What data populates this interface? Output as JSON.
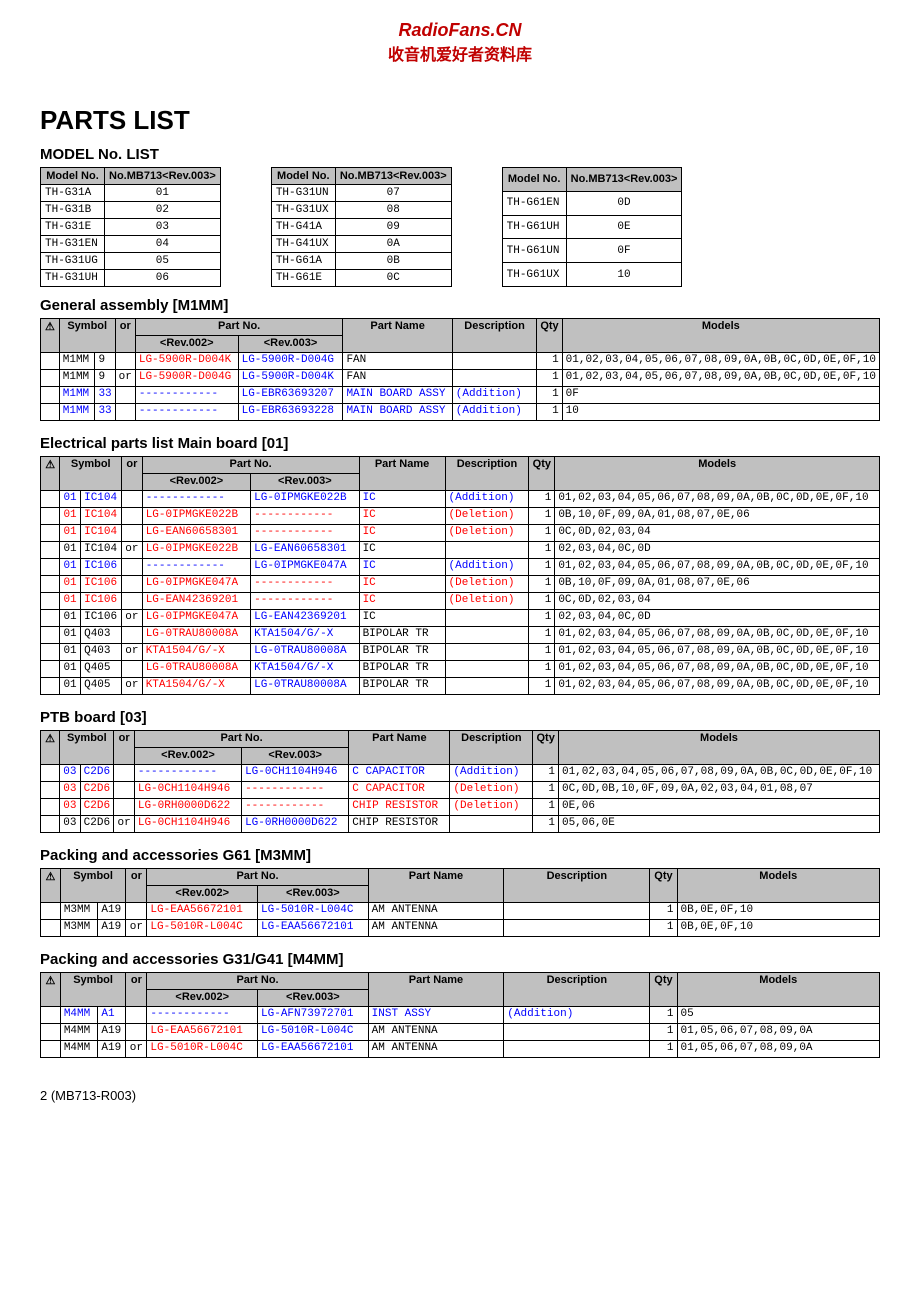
{
  "watermark": {
    "title": "RadioFans.CN",
    "sub": "收音机爱好者资料库"
  },
  "page_title": "PARTS LIST",
  "model_list_heading": "MODEL No. LIST",
  "model_header": {
    "col1": "Model No.",
    "col2": "No.MB713<Rev.003>"
  },
  "model_tables": [
    [
      [
        "TH-G31A",
        "01"
      ],
      [
        "TH-G31B",
        "02"
      ],
      [
        "TH-G31E",
        "03"
      ],
      [
        "TH-G31EN",
        "04"
      ],
      [
        "TH-G31UG",
        "05"
      ],
      [
        "TH-G31UH",
        "06"
      ]
    ],
    [
      [
        "TH-G31UN",
        "07"
      ],
      [
        "TH-G31UX",
        "08"
      ],
      [
        "TH-G41A",
        "09"
      ],
      [
        "TH-G41UX",
        "0A"
      ],
      [
        "TH-G61A",
        "0B"
      ],
      [
        "TH-G61E",
        "0C"
      ]
    ],
    [
      [
        "TH-G61EN",
        "0D"
      ],
      [
        "TH-G61UH",
        "0E"
      ],
      [
        "TH-G61UN",
        "0F"
      ],
      [
        "TH-G61UX",
        "10"
      ]
    ]
  ],
  "sections": [
    {
      "heading": "General assembly [M1MM]",
      "widths": [
        "12",
        "36",
        "14",
        "18",
        "108",
        "108",
        "118",
        "86",
        "24",
        "280"
      ],
      "rows": [
        {
          "d": "",
          "s1": "M1MM",
          "s2": "9",
          "or": "",
          "r2": "LG-5900R-D004K",
          "r2c": "red",
          "r3": "LG-5900R-D004G",
          "r3c": "blue",
          "pn": "FAN",
          "desc": "",
          "qty": "1",
          "models": "01,02,03,04,05,06,07,08,09,0A,0B,0C,0D,0E,0F,10"
        },
        {
          "d": "",
          "s1": "M1MM",
          "s2": "9",
          "or": "or",
          "r2": "LG-5900R-D004G",
          "r2c": "red",
          "r3": "LG-5900R-D004K",
          "r3c": "blue",
          "pn": "FAN",
          "desc": "",
          "qty": "1",
          "models": "01,02,03,04,05,06,07,08,09,0A,0B,0C,0D,0E,0F,10"
        },
        {
          "d": "",
          "s1": "M1MM",
          "s1c": "blue",
          "s2": "33",
          "s2c": "blue",
          "or": "",
          "r2": "------------",
          "r2c": "blue",
          "r3": "LG-EBR63693207",
          "r3c": "blue",
          "pn": "MAIN BOARD ASSY",
          "pnc": "blue",
          "desc": "(Addition)",
          "descc": "blue",
          "qty": "1",
          "models": "0F"
        },
        {
          "d": "",
          "s1": "M1MM",
          "s1c": "blue",
          "s2": "33",
          "s2c": "blue",
          "or": "",
          "r2": "------------",
          "r2c": "blue",
          "r3": "LG-EBR63693228",
          "r3c": "blue",
          "pn": "MAIN BOARD ASSY",
          "pnc": "blue",
          "desc": "(Addition)",
          "descc": "blue",
          "qty": "1",
          "models": "10"
        }
      ]
    },
    {
      "heading": "Electrical parts list Main board [01]",
      "widths": [
        "12",
        "18",
        "40",
        "18",
        "106",
        "106",
        "84",
        "82",
        "22",
        "312"
      ],
      "rows": [
        {
          "d": "",
          "s1": "01",
          "s1c": "blue",
          "s2": "IC104",
          "s2c": "blue",
          "or": "",
          "r2": "------------",
          "r2c": "blue",
          "r3": "LG-0IPMGKE022B",
          "r3c": "blue",
          "pn": "IC",
          "pnc": "blue",
          "desc": "(Addition)",
          "descc": "blue",
          "qty": "1",
          "models": "01,02,03,04,05,06,07,08,09,0A,0B,0C,0D,0E,0F,10"
        },
        {
          "d": "",
          "s1": "01",
          "s1c": "red",
          "s2": "IC104",
          "s2c": "red",
          "or": "",
          "r2": "LG-0IPMGKE022B",
          "r2c": "red",
          "r3": "------------",
          "r3c": "red",
          "pn": "IC",
          "pnc": "red",
          "desc": "(Deletion)",
          "descc": "red",
          "qty": "1",
          "models": "0B,10,0F,09,0A,01,08,07,0E,06"
        },
        {
          "d": "",
          "s1": "01",
          "s1c": "red",
          "s2": "IC104",
          "s2c": "red",
          "or": "",
          "r2": "LG-EAN60658301",
          "r2c": "red",
          "r3": "------------",
          "r3c": "red",
          "pn": "IC",
          "pnc": "red",
          "desc": "(Deletion)",
          "descc": "red",
          "qty": "1",
          "models": "0C,0D,02,03,04"
        },
        {
          "d": "",
          "s1": "01",
          "s2": "IC104",
          "or": "or",
          "r2": "LG-0IPMGKE022B",
          "r2c": "red",
          "r3": "LG-EAN60658301",
          "r3c": "blue",
          "pn": "IC",
          "desc": "",
          "qty": "1",
          "models": "02,03,04,0C,0D"
        },
        {
          "d": "",
          "s1": "01",
          "s1c": "blue",
          "s2": "IC106",
          "s2c": "blue",
          "or": "",
          "r2": "------------",
          "r2c": "blue",
          "r3": "LG-0IPMGKE047A",
          "r3c": "blue",
          "pn": "IC",
          "pnc": "blue",
          "desc": "(Addition)",
          "descc": "blue",
          "qty": "1",
          "models": "01,02,03,04,05,06,07,08,09,0A,0B,0C,0D,0E,0F,10"
        },
        {
          "d": "",
          "s1": "01",
          "s1c": "red",
          "s2": "IC106",
          "s2c": "red",
          "or": "",
          "r2": "LG-0IPMGKE047A",
          "r2c": "red",
          "r3": "------------",
          "r3c": "red",
          "pn": "IC",
          "pnc": "red",
          "desc": "(Deletion)",
          "descc": "red",
          "qty": "1",
          "models": "0B,10,0F,09,0A,01,08,07,0E,06"
        },
        {
          "d": "",
          "s1": "01",
          "s1c": "red",
          "s2": "IC106",
          "s2c": "red",
          "or": "",
          "r2": "LG-EAN42369201",
          "r2c": "red",
          "r3": "------------",
          "r3c": "red",
          "pn": "IC",
          "pnc": "red",
          "desc": "(Deletion)",
          "descc": "red",
          "qty": "1",
          "models": "0C,0D,02,03,04"
        },
        {
          "d": "",
          "s1": "01",
          "s2": "IC106",
          "or": "or",
          "r2": "LG-0IPMGKE047A",
          "r2c": "red",
          "r3": "LG-EAN42369201",
          "r3c": "blue",
          "pn": "IC",
          "desc": "",
          "qty": "1",
          "models": "02,03,04,0C,0D"
        },
        {
          "d": "",
          "s1": "01",
          "s2": "Q403",
          "or": "",
          "r2": "LG-0TRAU80008A",
          "r2c": "red",
          "r3": "KTA1504/G/-X",
          "r3c": "blue",
          "pn": "BIPOLAR TR",
          "desc": "",
          "qty": "1",
          "models": "01,02,03,04,05,06,07,08,09,0A,0B,0C,0D,0E,0F,10"
        },
        {
          "d": "",
          "s1": "01",
          "s2": "Q403",
          "or": "or",
          "r2": "KTA1504/G/-X",
          "r2c": "red",
          "r3": "LG-0TRAU80008A",
          "r3c": "blue",
          "pn": "BIPOLAR TR",
          "desc": "",
          "qty": "1",
          "models": "01,02,03,04,05,06,07,08,09,0A,0B,0C,0D,0E,0F,10"
        },
        {
          "d": "",
          "s1": "01",
          "s2": "Q405",
          "or": "",
          "r2": "LG-0TRAU80008A",
          "r2c": "red",
          "r3": "KTA1504/G/-X",
          "r3c": "blue",
          "pn": "BIPOLAR TR",
          "desc": "",
          "qty": "1",
          "models": "01,02,03,04,05,06,07,08,09,0A,0B,0C,0D,0E,0F,10"
        },
        {
          "d": "",
          "s1": "01",
          "s2": "Q405",
          "or": "or",
          "r2": "KTA1504/G/-X",
          "r2c": "red",
          "r3": "LG-0TRAU80008A",
          "r3c": "blue",
          "pn": "BIPOLAR TR",
          "desc": "",
          "qty": "1",
          "models": "01,02,03,04,05,06,07,08,09,0A,0B,0C,0D,0E,0F,10"
        }
      ]
    },
    {
      "heading": "PTB board [03]",
      "widths": [
        "12",
        "18",
        "32",
        "18",
        "106",
        "106",
        "100",
        "82",
        "22",
        "304"
      ],
      "rows": [
        {
          "d": "",
          "s1": "03",
          "s1c": "blue",
          "s2": "C2D6",
          "s2c": "blue",
          "or": "",
          "r2": "------------",
          "r2c": "blue",
          "r3": "LG-0CH1104H946",
          "r3c": "blue",
          "pn": "C CAPACITOR",
          "pnc": "blue",
          "desc": "(Addition)",
          "descc": "blue",
          "qty": "1",
          "models": "01,02,03,04,05,06,07,08,09,0A,0B,0C,0D,0E,0F,10"
        },
        {
          "d": "",
          "s1": "03",
          "s1c": "red",
          "s2": "C2D6",
          "s2c": "red",
          "or": "",
          "r2": "LG-0CH1104H946",
          "r2c": "red",
          "r3": "------------",
          "r3c": "red",
          "pn": "C CAPACITOR",
          "pnc": "red",
          "desc": "(Deletion)",
          "descc": "red",
          "qty": "1",
          "models": "0C,0D,0B,10,0F,09,0A,02,03,04,01,08,07"
        },
        {
          "d": "",
          "s1": "03",
          "s1c": "red",
          "s2": "C2D6",
          "s2c": "red",
          "or": "",
          "r2": "LG-0RH0000D622",
          "r2c": "red",
          "r3": "------------",
          "r3c": "red",
          "pn": "CHIP RESISTOR",
          "pnc": "red",
          "desc": "(Deletion)",
          "descc": "red",
          "qty": "1",
          "models": "0E,06"
        },
        {
          "d": "",
          "s1": "03",
          "s2": "C2D6",
          "or": "or",
          "r2": "LG-0CH1104H946",
          "r2c": "red",
          "r3": "LG-0RH0000D622",
          "r3c": "blue",
          "pn": "CHIP RESISTOR",
          "desc": "",
          "qty": "1",
          "models": "05,06,0E"
        }
      ]
    },
    {
      "heading": "Packing and accessories G61 [M3MM]",
      "widths": [
        "16",
        "36",
        "26",
        "20",
        "106",
        "106",
        "130",
        "140",
        "26",
        "194"
      ],
      "rows": [
        {
          "d": "",
          "s1": "M3MM",
          "s2": "A19",
          "or": "",
          "r2": "LG-EAA56672101",
          "r2c": "red",
          "r3": "LG-5010R-L004C",
          "r3c": "blue",
          "pn": "AM ANTENNA",
          "desc": "",
          "qty": "1",
          "models": "0B,0E,0F,10"
        },
        {
          "d": "",
          "s1": "M3MM",
          "s2": "A19",
          "or": "or",
          "r2": "LG-5010R-L004C",
          "r2c": "red",
          "r3": "LG-EAA56672101",
          "r3c": "blue",
          "pn": "AM ANTENNA",
          "desc": "",
          "qty": "1",
          "models": "0B,0E,0F,10"
        }
      ]
    },
    {
      "heading": "Packing and accessories G31/G41 [M4MM]",
      "widths": [
        "16",
        "36",
        "26",
        "20",
        "106",
        "106",
        "130",
        "140",
        "26",
        "194"
      ],
      "rows": [
        {
          "d": "",
          "s1": "M4MM",
          "s1c": "blue",
          "s2": "A1",
          "s2c": "blue",
          "or": "",
          "r2": "------------",
          "r2c": "blue",
          "r3": "LG-AFN73972701",
          "r3c": "blue",
          "pn": "INST ASSY",
          "pnc": "blue",
          "desc": "(Addition)",
          "descc": "blue",
          "qty": "1",
          "models": "05"
        },
        {
          "d": "",
          "s1": "M4MM",
          "s2": "A19",
          "or": "",
          "r2": "LG-EAA56672101",
          "r2c": "red",
          "r3": "LG-5010R-L004C",
          "r3c": "blue",
          "pn": "AM ANTENNA",
          "desc": "",
          "qty": "1",
          "models": "01,05,06,07,08,09,0A"
        },
        {
          "d": "",
          "s1": "M4MM",
          "s2": "A19",
          "or": "or",
          "r2": "LG-5010R-L004C",
          "r2c": "red",
          "r3": "LG-EAA56672101",
          "r3c": "blue",
          "pn": "AM ANTENNA",
          "desc": "",
          "qty": "1",
          "models": "01,05,06,07,08,09,0A"
        }
      ]
    }
  ],
  "parts_header": {
    "delta": "⚠",
    "symbol": "Symbol",
    "or": "or",
    "partno": "Part No.",
    "rev2": "<Rev.002>",
    "rev3": "<Rev.003>",
    "partname": "Part Name",
    "desc": "Description",
    "qty": "Qty",
    "models": "Models"
  },
  "footer": "2 (MB713-R003)"
}
